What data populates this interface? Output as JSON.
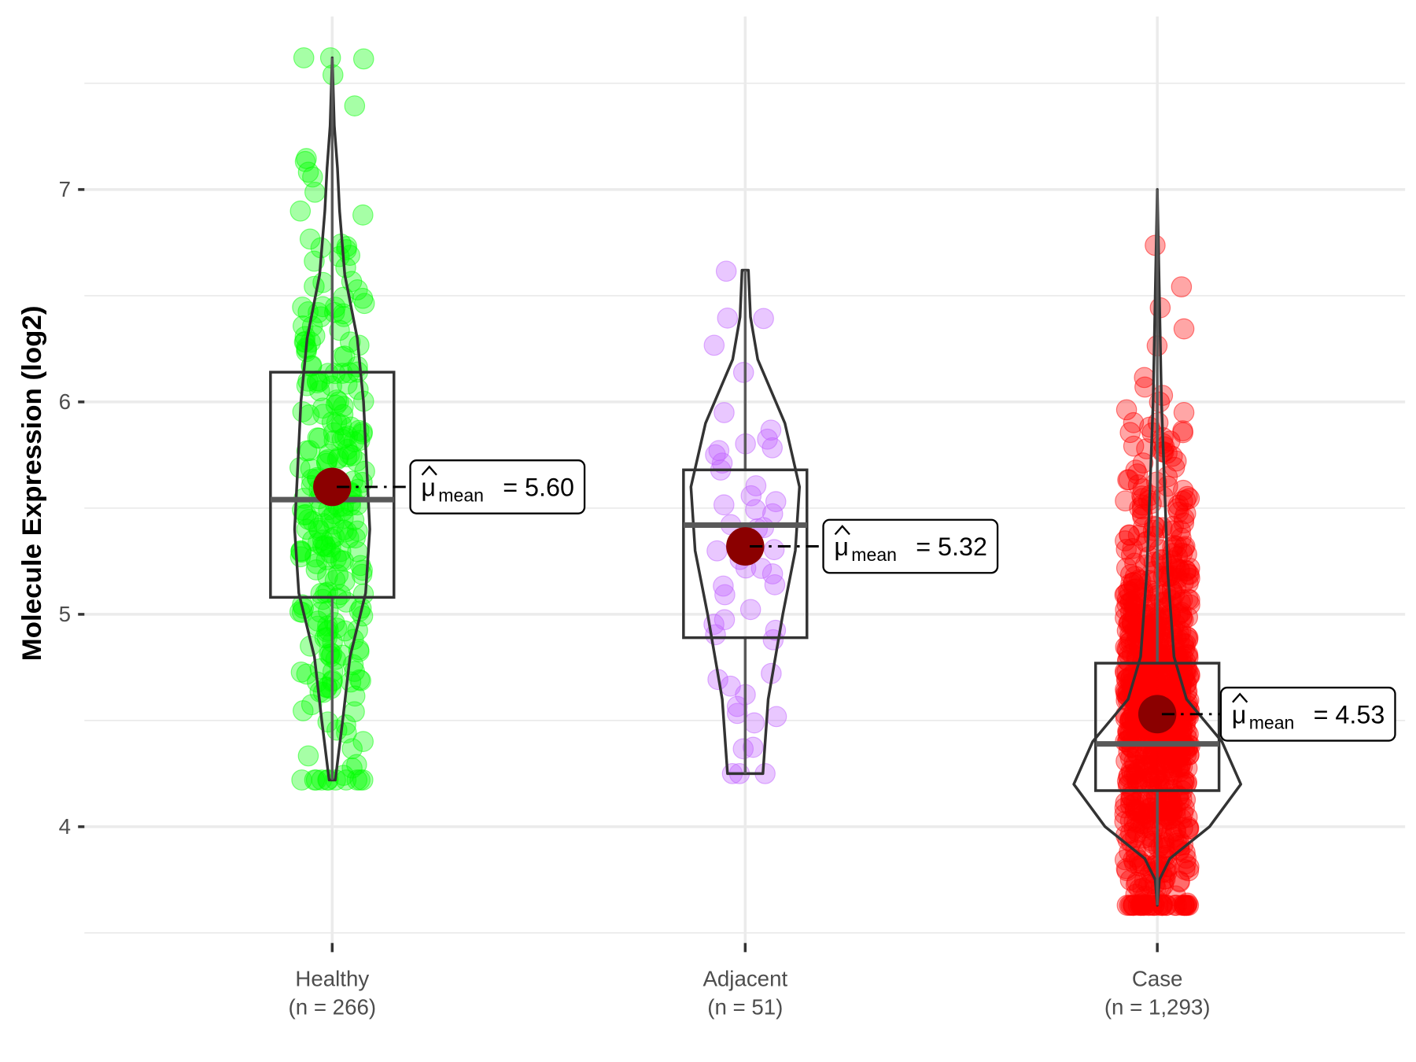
{
  "chart_data": {
    "type": "violin",
    "title": "",
    "xlabel": "",
    "ylabel": "Molecule Expression (log2)",
    "ylim": [
      3.45,
      7.78
    ],
    "y_ticks": [
      4,
      5,
      6,
      7
    ],
    "y_minor_grid": [
      3.5,
      4.5,
      5.5,
      6.5,
      7.5
    ],
    "grid": true,
    "legend": "none",
    "groups": [
      {
        "name": "Healthy",
        "n_label": "(n = 266)",
        "n": 266,
        "color": "#00ff00",
        "min": 4.22,
        "q1": 5.08,
        "median": 5.54,
        "q3": 6.14,
        "max": 7.62,
        "mean": 5.6,
        "mean_label": "5.60",
        "violin_width_profile": [
          [
            4.22,
            0.03
          ],
          [
            4.5,
            0.1
          ],
          [
            4.8,
            0.17
          ],
          [
            5.1,
            0.32
          ],
          [
            5.4,
            0.36
          ],
          [
            5.7,
            0.33
          ],
          [
            6.0,
            0.3
          ],
          [
            6.3,
            0.24
          ],
          [
            6.6,
            0.12
          ],
          [
            6.9,
            0.07
          ],
          [
            7.1,
            0.05
          ],
          [
            7.3,
            0.02
          ],
          [
            7.62,
            0.0
          ]
        ]
      },
      {
        "name": "Adjacent",
        "n_label": "(n = 51)",
        "n": 51,
        "color": "#bf5fff",
        "min": 4.25,
        "q1": 4.89,
        "median": 5.42,
        "q3": 5.68,
        "max": 6.62,
        "mean": 5.32,
        "mean_label": "5.32",
        "violin_width_profile": [
          [
            4.25,
            0.17
          ],
          [
            4.6,
            0.22
          ],
          [
            5.0,
            0.36
          ],
          [
            5.3,
            0.48
          ],
          [
            5.6,
            0.52
          ],
          [
            5.9,
            0.38
          ],
          [
            6.2,
            0.12
          ],
          [
            6.4,
            0.05
          ],
          [
            6.62,
            0.03
          ]
        ]
      },
      {
        "name": "Case",
        "n_label": "(n = 1,293)",
        "n": 1293,
        "color": "#ff0000",
        "min": 3.63,
        "q1": 4.17,
        "median": 4.39,
        "q3": 4.77,
        "max": 7.0,
        "mean": 4.53,
        "mean_label": "4.53",
        "violin_width_profile": [
          [
            3.63,
            0.0
          ],
          [
            3.75,
            0.02
          ],
          [
            3.85,
            0.12
          ],
          [
            4.0,
            0.5
          ],
          [
            4.2,
            0.8
          ],
          [
            4.4,
            0.62
          ],
          [
            4.6,
            0.28
          ],
          [
            4.8,
            0.16
          ],
          [
            5.2,
            0.1
          ],
          [
            5.6,
            0.07
          ],
          [
            6.0,
            0.04
          ],
          [
            6.5,
            0.02
          ],
          [
            7.0,
            0.0
          ]
        ]
      }
    ],
    "mean_annotation_prefix": "mean",
    "mean_point_color": "#8b0000"
  }
}
